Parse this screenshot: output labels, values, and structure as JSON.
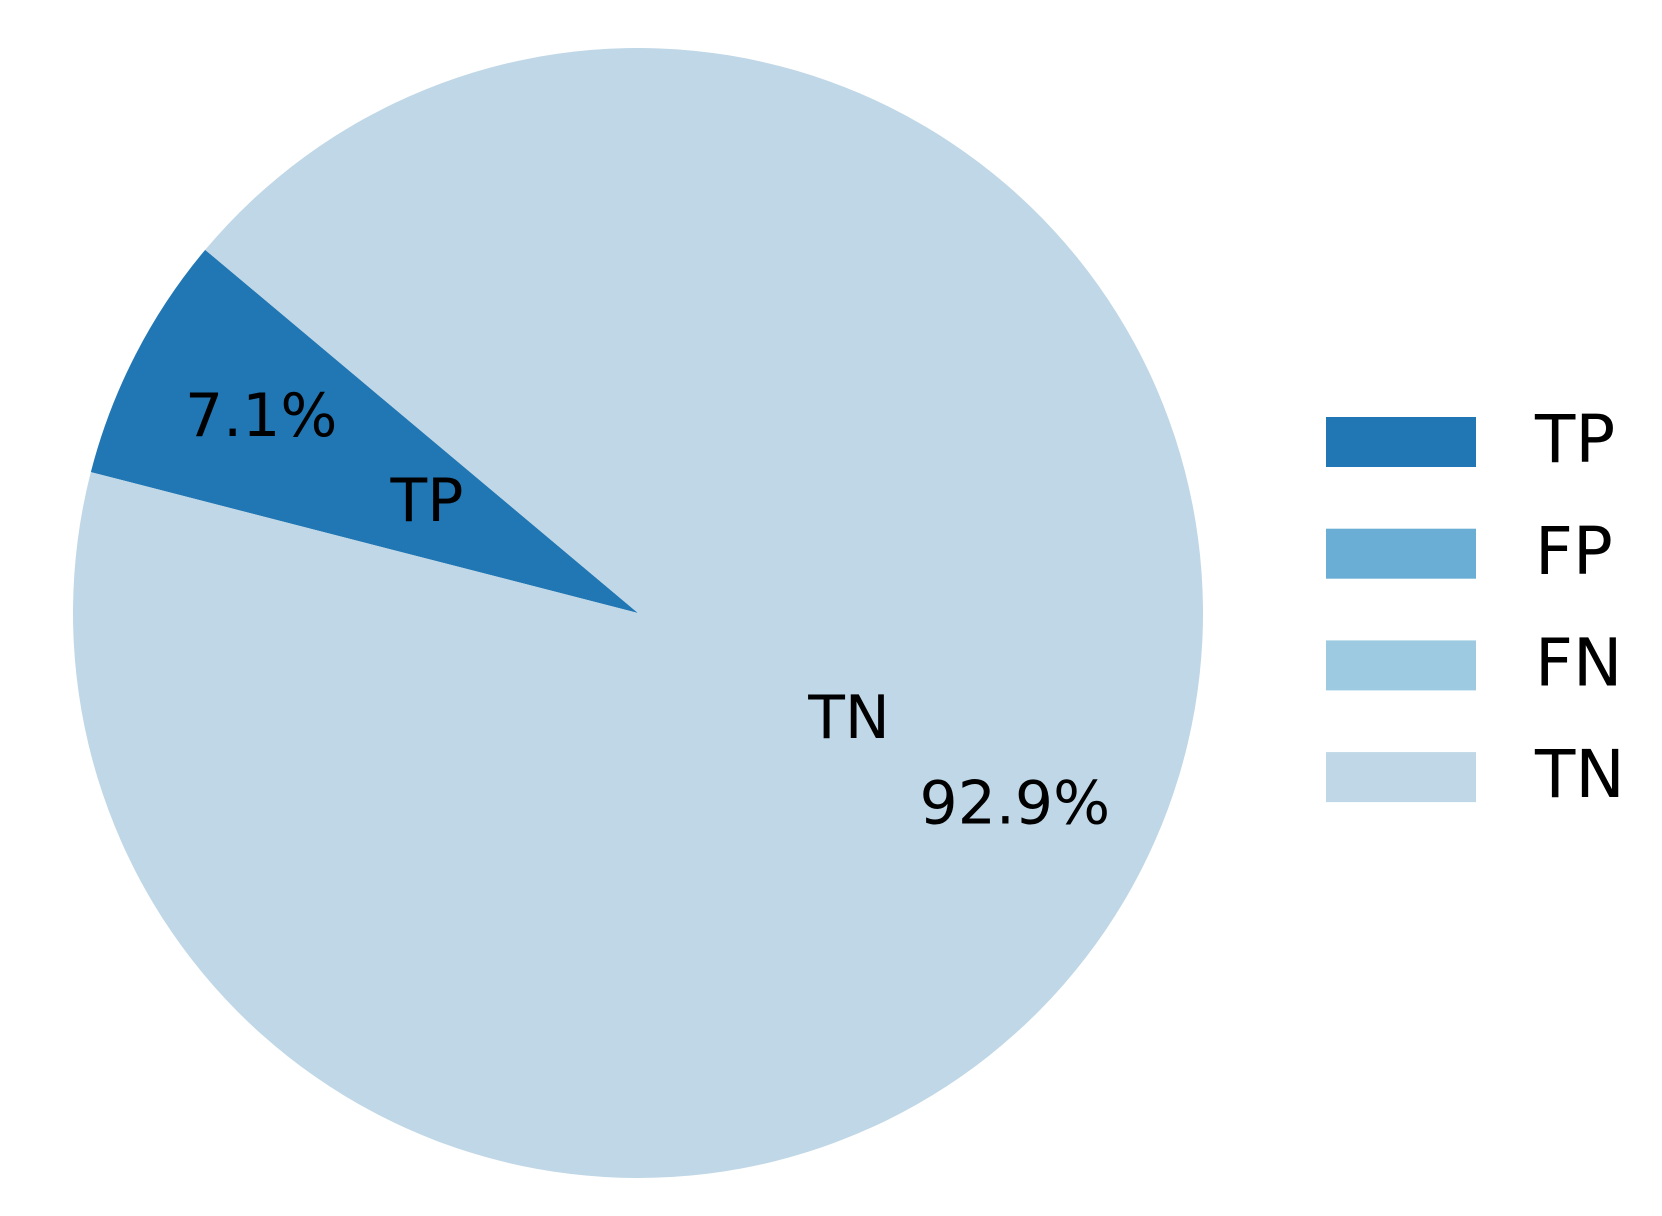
{
  "chart_data": {
    "type": "pie",
    "categories": [
      "TP",
      "FP",
      "FN",
      "TN"
    ],
    "values": [
      7.1,
      0,
      0,
      92.9
    ],
    "value_labels": [
      "7.1%",
      null,
      null,
      "92.9%"
    ],
    "colors": [
      "#2176b4",
      "#6aaed6",
      "#9ecae1",
      "#bfd7e6"
    ],
    "legend": "right"
  }
}
